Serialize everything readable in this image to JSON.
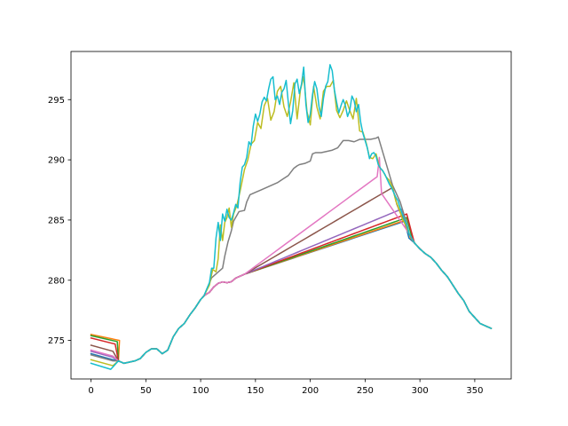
{
  "chart_data": {
    "type": "line",
    "title": "",
    "xlabel": "",
    "ylabel": "",
    "xlim": [
      -18.25,
      383.25
    ],
    "ylim": [
      271.8,
      299.0
    ],
    "xticks": [
      0,
      50,
      100,
      150,
      200,
      250,
      300,
      350
    ],
    "yticks": [
      275,
      280,
      285,
      290,
      295
    ],
    "grid": false,
    "legend": "none",
    "colors": [
      "#1f77b4",
      "#ff7f0e",
      "#2ca02c",
      "#d62728",
      "#9467bd",
      "#8c564b",
      "#e377c2",
      "#7f7f7f",
      "#bcbd22",
      "#17becf"
    ],
    "common_profile": {
      "x": [
        25,
        30,
        35,
        40,
        45,
        50,
        55,
        60,
        65,
        70,
        75,
        80,
        85,
        90,
        95,
        100,
        103
      ],
      "y": [
        273.3,
        273.1,
        273.2,
        273.3,
        273.5,
        274.0,
        274.3,
        274.3,
        273.9,
        274.2,
        275.3,
        276.0,
        276.4,
        277.1,
        277.7,
        278.4,
        278.7
      ]
    },
    "cooling_profile": {
      "x": [
        290,
        295,
        300,
        305,
        310,
        315,
        320,
        325,
        330,
        335,
        340,
        345,
        350,
        355,
        360,
        365
      ],
      "y": [
        283.9,
        283.1,
        282.6,
        282.2,
        281.9,
        281.4,
        280.8,
        280.3,
        279.6,
        278.9,
        278.3,
        277.4,
        276.9,
        276.4,
        276.2,
        276.0
      ]
    },
    "series": [
      {
        "start": [
          0,
          273.9
        ],
        "drop_x": 20,
        "peak": [
          286,
          284.9
        ]
      },
      {
        "start": [
          0,
          275.5
        ],
        "drop_x": 26,
        "peak": [
          287,
          285.0
        ]
      },
      {
        "start": [
          0,
          275.4
        ],
        "drop_x": 24,
        "peak": [
          288,
          285.2
        ]
      },
      {
        "start": [
          0,
          275.2
        ],
        "drop_x": 22,
        "peak": [
          288,
          285.5
        ]
      },
      {
        "start": [
          0,
          274.1
        ],
        "drop_x": 20,
        "peak": [
          283,
          285.9
        ]
      },
      {
        "start": [
          0,
          274.6
        ],
        "drop_x": 20,
        "peak": [
          275,
          287.7
        ]
      },
      {
        "start": [
          0,
          274.2
        ],
        "drop_x": 20,
        "peak": [
          261,
          288.6
        ],
        "late_jump": [
          263,
          290.2
        ]
      },
      {
        "start": [
          0,
          273.8
        ],
        "drop_x": 20,
        "steps": {
          "x": [
            110,
            115,
            120,
            122,
            125,
            128,
            130,
            135,
            140,
            142,
            145,
            150,
            155,
            160,
            165,
            170,
            175,
            180,
            185,
            188,
            190,
            195,
            200,
            202,
            205,
            210,
            215,
            220,
            225,
            230,
            235,
            240,
            245,
            250,
            255,
            260,
            262
          ],
          "y": [
            280.2,
            280.6,
            281.0,
            282.0,
            283.2,
            284.1,
            284.9,
            285.7,
            285.8,
            286.5,
            287.1,
            287.3,
            287.5,
            287.7,
            287.9,
            288.1,
            288.4,
            288.7,
            289.3,
            289.5,
            289.6,
            289.7,
            289.9,
            290.5,
            290.6,
            290.6,
            290.7,
            290.8,
            291.0,
            291.6,
            291.6,
            291.5,
            291.7,
            291.7,
            291.7,
            291.8,
            291.9
          ]
        }
      },
      {
        "start": [
          0,
          273.4
        ],
        "drop_x": 20,
        "noisy": {
          "x": [
            108,
            111,
            114,
            116,
            118,
            120,
            122,
            124,
            126,
            128,
            130,
            133,
            136,
            140,
            143,
            146,
            149,
            152,
            155,
            158,
            161,
            164,
            167,
            170,
            173,
            176,
            179,
            182,
            185,
            188,
            191,
            194,
            197,
            200,
            203,
            206,
            209,
            212,
            215,
            218,
            221,
            224,
            227,
            230,
            233,
            236,
            239,
            242,
            245,
            248,
            251,
            254,
            257,
            260,
            263,
            266,
            269,
            272,
            275,
            278,
            281,
            284,
            287
          ],
          "y": [
            279.6,
            280.9,
            280.7,
            281.8,
            284.6,
            283.3,
            284.8,
            285.2,
            286.0,
            284.4,
            285.5,
            286.2,
            287.4,
            289.2,
            290.0,
            291.3,
            291.6,
            293.1,
            292.6,
            294.5,
            295.1,
            293.3,
            294.0,
            295.7,
            296.1,
            294.4,
            293.6,
            294.8,
            296.4,
            293.4,
            295.8,
            296.9,
            294.0,
            292.9,
            296.1,
            294.4,
            293.4,
            295.7,
            296.1,
            296.1,
            296.6,
            294.1,
            293.5,
            294.1,
            294.9,
            294.1,
            293.4,
            295.1,
            292.4,
            292.3,
            291.4,
            290.2,
            290.1,
            290.5,
            289.4,
            289.1,
            288.6,
            288.3,
            287.7,
            286.6,
            285.9,
            285.1,
            284.6
          ]
        }
      },
      {
        "start": [
          0,
          273.1
        ],
        "drop_x": 18,
        "noisy": {
          "x": [
            108,
            110,
            112,
            114,
            116,
            118,
            120,
            122,
            124,
            126,
            128,
            130,
            132,
            134,
            136,
            138,
            140,
            142,
            144,
            146,
            148,
            150,
            152,
            154,
            156,
            158,
            160,
            162,
            164,
            166,
            168,
            170,
            172,
            174,
            176,
            178,
            180,
            182,
            184,
            186,
            188,
            190,
            192,
            194,
            196,
            198,
            200,
            202,
            204,
            206,
            208,
            210,
            212,
            214,
            216,
            218,
            220,
            222,
            224,
            226,
            228,
            230,
            232,
            234,
            236,
            238,
            240,
            242,
            244,
            246,
            248,
            250,
            252,
            254,
            256,
            258,
            260,
            262,
            264,
            266,
            268,
            270,
            272,
            274,
            276,
            278,
            280,
            282,
            284,
            286,
            288
          ],
          "y": [
            279.8,
            281.0,
            281.0,
            283.5,
            284.8,
            283.3,
            285.5,
            284.9,
            285.9,
            285.2,
            285.0,
            285.6,
            286.3,
            286.0,
            288.1,
            289.4,
            289.6,
            290.2,
            291.5,
            291.2,
            292.8,
            293.8,
            293.2,
            293.8,
            294.8,
            295.2,
            294.9,
            295.9,
            296.7,
            296.9,
            295.0,
            295.3,
            294.6,
            295.6,
            295.9,
            296.6,
            294.7,
            293.0,
            294.1,
            296.3,
            296.7,
            295.5,
            296.3,
            297.7,
            294.6,
            293.1,
            293.8,
            295.4,
            296.5,
            295.9,
            294.4,
            293.6,
            295.1,
            296.1,
            296.5,
            297.9,
            297.4,
            295.8,
            294.8,
            293.9,
            294.5,
            295.0,
            294.5,
            293.6,
            294.1,
            295.3,
            294.9,
            294.0,
            294.6,
            293.1,
            292.2,
            291.6,
            291.0,
            290.1,
            290.5,
            290.6,
            290.3,
            289.6,
            289.3,
            289.1,
            288.8,
            288.4,
            288.0,
            287.7,
            287.3,
            286.9,
            286.6,
            286.0,
            285.5,
            285.0,
            284.6
          ]
        }
      }
    ]
  }
}
